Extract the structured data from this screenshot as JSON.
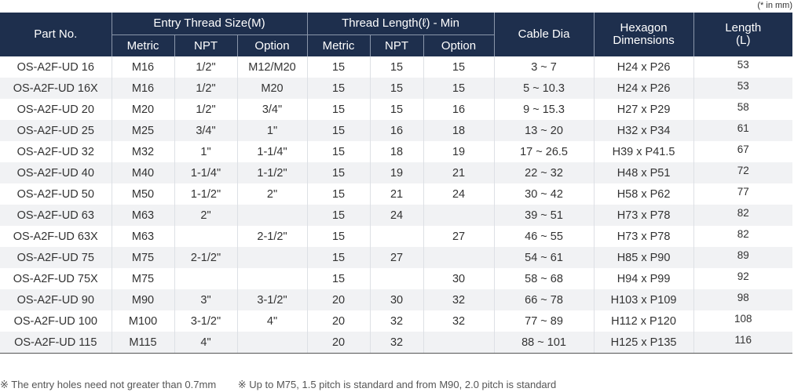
{
  "unit_note": "(* in mm)",
  "headers": {
    "part_no": "Part No.",
    "entry_thread": "Entry Thread Size(M)",
    "thread_length": "Thread Length(ℓ) - Min",
    "cable_dia": "Cable Dia",
    "hexagon_line1": "Hexagon",
    "hexagon_line2": "Dimensions",
    "length_line1": "Length",
    "length_line2": "(L)",
    "sub": {
      "metric1": "Metric",
      "npt1": "NPT",
      "option1": "Option",
      "metric2": "Metric",
      "npt2": "NPT",
      "option2": "Option"
    }
  },
  "rows": [
    {
      "part": "OS-A2F-UD 16",
      "metric": "M16",
      "npt": "1/2\"",
      "option": "M12/M20",
      "tl_metric": "15",
      "tl_npt": "15",
      "tl_option": "15",
      "cable": "3 ~ 7",
      "hex": "H24 x P26",
      "length": "53"
    },
    {
      "part": "OS-A2F-UD 16X",
      "metric": "M16",
      "npt": "1/2\"",
      "option": "M20",
      "tl_metric": "15",
      "tl_npt": "15",
      "tl_option": "15",
      "cable": "5 ~ 10.3",
      "hex": "H24 x P26",
      "length": "53"
    },
    {
      "part": "OS-A2F-UD 20",
      "metric": "M20",
      "npt": "1/2\"",
      "option": "3/4\"",
      "tl_metric": "15",
      "tl_npt": "15",
      "tl_option": "16",
      "cable": "9 ~ 15.3",
      "hex": "H27 x P29",
      "length": "58"
    },
    {
      "part": "OS-A2F-UD 25",
      "metric": "M25",
      "npt": "3/4\"",
      "option": "1\"",
      "tl_metric": "15",
      "tl_npt": "16",
      "tl_option": "18",
      "cable": "13 ~ 20",
      "hex": "H32 x P34",
      "length": "61"
    },
    {
      "part": "OS-A2F-UD 32",
      "metric": "M32",
      "npt": "1\"",
      "option": "1-1/4\"",
      "tl_metric": "15",
      "tl_npt": "18",
      "tl_option": "19",
      "cable": "17 ~ 26.5",
      "hex": "H39 x P41.5",
      "length": "67"
    },
    {
      "part": "OS-A2F-UD 40",
      "metric": "M40",
      "npt": "1-1/4\"",
      "option": "1-1/2\"",
      "tl_metric": "15",
      "tl_npt": "19",
      "tl_option": "21",
      "cable": "22 ~ 32",
      "hex": "H48 x P51",
      "length": "72"
    },
    {
      "part": "OS-A2F-UD 50",
      "metric": "M50",
      "npt": "1-1/2\"",
      "option": "2\"",
      "tl_metric": "15",
      "tl_npt": "21",
      "tl_option": "24",
      "cable": "30 ~ 42",
      "hex": "H58 x P62",
      "length": "77"
    },
    {
      "part": "OS-A2F-UD 63",
      "metric": "M63",
      "npt": "2\"",
      "option": "",
      "tl_metric": "15",
      "tl_npt": "24",
      "tl_option": "",
      "cable": "39 ~ 51",
      "hex": "H73 x P78",
      "length": "82"
    },
    {
      "part": "OS-A2F-UD 63X",
      "metric": "M63",
      "npt": "",
      "option": "2-1/2\"",
      "tl_metric": "15",
      "tl_npt": "",
      "tl_option": "27",
      "cable": "46 ~ 55",
      "hex": "H73 x P78",
      "length": "82"
    },
    {
      "part": "OS-A2F-UD 75",
      "metric": "M75",
      "npt": "2-1/2\"",
      "option": "",
      "tl_metric": "15",
      "tl_npt": "27",
      "tl_option": "",
      "cable": "54 ~ 61",
      "hex": "H85 x P90",
      "length": "89"
    },
    {
      "part": "OS-A2F-UD 75X",
      "metric": "M75",
      "npt": "",
      "option": "",
      "tl_metric": "15",
      "tl_npt": "",
      "tl_option": "30",
      "cable": "58 ~ 68",
      "hex": "H94 x P99",
      "length": "92"
    },
    {
      "part": "OS-A2F-UD 90",
      "metric": "M90",
      "npt": "3\"",
      "option": "3-1/2\"",
      "tl_metric": "20",
      "tl_npt": "30",
      "tl_option": "32",
      "cable": "66 ~ 78",
      "hex": "H103 x P109",
      "length": "98"
    },
    {
      "part": "OS-A2F-UD 100",
      "metric": "M100",
      "npt": "3-1/2\"",
      "option": "4\"",
      "tl_metric": "20",
      "tl_npt": "32",
      "tl_option": "32",
      "cable": "77 ~ 89",
      "hex": "H112 x P120",
      "length": "108"
    },
    {
      "part": "OS-A2F-UD 115",
      "metric": "M115",
      "npt": "4\"",
      "option": "",
      "tl_metric": "20",
      "tl_npt": "32",
      "tl_option": "",
      "cable": "88 ~ 101",
      "hex": "H125 x P135",
      "length": "116"
    }
  ],
  "notes": {
    "note1": "※ The entry holes need not greater than 0.7mm",
    "note2": "※ Up to M75, 1.5 pitch is standard and from M90, 2.0 pitch is standard"
  }
}
